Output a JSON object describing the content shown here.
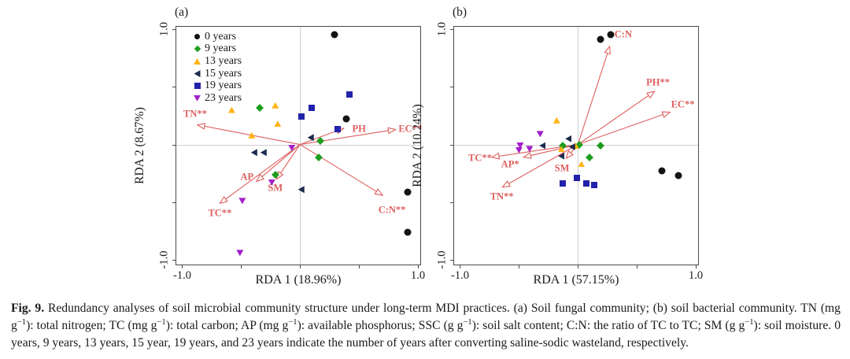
{
  "figure": {
    "caption": {
      "label": "Fig. 9.",
      "text": "Redundancy analyses of soil microbial community structure under long-term MDI practices. (a) Soil fungal community; (b) soil bacterial community. TN (mg g^{−1}): total nitrogen; TC (mg g^{−1}): total carbon; AP (mg g^{−1}): available phosphorus; SSC (g g^{−1}): soil salt content; C:N: the ratio of TC to TC; SM (g g^{−1}): soil moisture. 0 years, 9 years, 13 years, 15 year, 19 years, and 23 years indicate the number of years after converting saline-sodic wasteland, respectively."
    },
    "colors": {
      "arrow_red": "#dd5f5f",
      "grid_gray": "#cfcfcf",
      "frame": "#4a4a4a"
    }
  },
  "chart_data": [
    {
      "type": "scatter",
      "subtype": "rda-biplot",
      "panel": "(a)",
      "xlabel": "RDA 1 (18.96%)",
      "ylabel": "RDA 2 (8.67%)",
      "xlim": [
        -1.05,
        1.02
      ],
      "ylim": [
        -1.04,
        1.02
      ],
      "ticks": [
        -1.0,
        -0.5,
        0,
        0.5,
        1.0
      ],
      "labeled_ticks": [
        {
          "value": -1.0,
          "label": "-1.0"
        },
        {
          "value": 1.0,
          "label": "1.0"
        }
      ],
      "grid_crosshair": true,
      "legend_position": "top-left-inside",
      "show_legend": true,
      "groups": [
        {
          "label": "0 years",
          "marker": "circle",
          "color": "#131313",
          "points": [
            [
              0.29,
              0.95
            ],
            [
              0.39,
              0.22
            ],
            [
              0.91,
              -0.41
            ],
            [
              0.91,
              -0.76
            ]
          ]
        },
        {
          "label": "9 years",
          "marker": "diamond",
          "color": "#1e9c1e",
          "points": [
            [
              -0.34,
              0.32
            ],
            [
              0.17,
              0.03
            ],
            [
              0.16,
              -0.11
            ],
            [
              -0.21,
              -0.26
            ]
          ]
        },
        {
          "label": "13 years",
          "marker": "triangle-up",
          "color": "#ffb414",
          "points": [
            [
              -0.58,
              0.3
            ],
            [
              -0.21,
              0.34
            ],
            [
              -0.19,
              0.18
            ],
            [
              -0.41,
              0.08
            ]
          ]
        },
        {
          "label": "15 years",
          "marker": "triangle-left",
          "color": "#1b2b4d",
          "points": [
            [
              0.09,
              0.06
            ],
            [
              -0.39,
              -0.07
            ],
            [
              -0.31,
              -0.07
            ],
            [
              0.01,
              -0.39
            ]
          ]
        },
        {
          "label": "19 years",
          "marker": "square",
          "color": "#2222aa",
          "points": [
            [
              0.42,
              0.43
            ],
            [
              0.1,
              0.32
            ],
            [
              0.01,
              0.24
            ],
            [
              0.32,
              0.13
            ]
          ]
        },
        {
          "label": "23 years",
          "marker": "triangle-down",
          "color": "#a21fc9",
          "points": [
            [
              -0.07,
              -0.03
            ],
            [
              -0.24,
              -0.33
            ],
            [
              -0.49,
              -0.49
            ],
            [
              -0.51,
              -0.94
            ]
          ]
        }
      ],
      "arrows": [
        {
          "label": "TN**",
          "x": -0.87,
          "y": 0.17,
          "label_pos": [
            -0.89,
            0.26
          ]
        },
        {
          "label": "PH",
          "x": 0.37,
          "y": 0.14,
          "label_pos": [
            0.5,
            0.135
          ]
        },
        {
          "label": "EC**",
          "x": 0.81,
          "y": 0.13,
          "label_pos": [
            0.935,
            0.135
          ]
        },
        {
          "label": "C:N**",
          "x": 0.7,
          "y": -0.44,
          "label_pos": [
            0.78,
            -0.57
          ]
        },
        {
          "label": "AP",
          "x": -0.37,
          "y": -0.32,
          "label_pos": [
            -0.45,
            -0.285
          ]
        },
        {
          "label": "SM",
          "x": -0.2,
          "y": -0.3,
          "label_pos": [
            -0.21,
            -0.375
          ]
        },
        {
          "label": "TC**",
          "x": -0.68,
          "y": -0.51,
          "label_pos": [
            -0.68,
            -0.6
          ]
        }
      ]
    },
    {
      "type": "scatter",
      "subtype": "rda-biplot",
      "panel": "(b)",
      "xlabel": "RDA 1 (57.15%)",
      "ylabel": "RDA 2 (10.24%)",
      "xlim": [
        -1.05,
        1.02
      ],
      "ylim": [
        -1.04,
        1.02
      ],
      "ticks": [
        -1.0,
        -0.5,
        0,
        0.5,
        1.0
      ],
      "labeled_ticks": [
        {
          "value": -1.0,
          "label": "-1.0"
        },
        {
          "value": 1.0,
          "label": "1.0"
        }
      ],
      "grid_crosshair": true,
      "legend_position": "none",
      "show_legend": false,
      "groups": [
        {
          "label": "0 years",
          "marker": "circle",
          "color": "#131313",
          "points": [
            [
              0.19,
              0.91
            ],
            [
              0.28,
              0.95
            ],
            [
              0.71,
              -0.23
            ],
            [
              0.85,
              -0.27
            ]
          ]
        },
        {
          "label": "9 years",
          "marker": "diamond",
          "color": "#1e9c1e",
          "points": [
            [
              -0.13,
              -0.01
            ],
            [
              0.01,
              0.0
            ],
            [
              0.19,
              -0.01
            ],
            [
              0.1,
              -0.11
            ]
          ]
        },
        {
          "label": "13 years",
          "marker": "triangle-up",
          "color": "#ffb414",
          "points": [
            [
              -0.18,
              0.21
            ],
            [
              -0.14,
              -0.04
            ],
            [
              -0.02,
              -0.01
            ],
            [
              0.03,
              -0.17
            ]
          ]
        },
        {
          "label": "15 years",
          "marker": "triangle-left",
          "color": "#1b2b4d",
          "points": [
            [
              -0.08,
              0.05
            ],
            [
              -0.3,
              -0.01
            ],
            [
              -0.05,
              -0.02
            ],
            [
              -0.14,
              -0.1
            ]
          ]
        },
        {
          "label": "19 years",
          "marker": "square",
          "color": "#2222aa",
          "points": [
            [
              -0.01,
              -0.29
            ],
            [
              -0.13,
              -0.34
            ],
            [
              0.07,
              -0.34
            ],
            [
              0.14,
              -0.35
            ]
          ]
        },
        {
          "label": "23 years",
          "marker": "triangle-down",
          "color": "#a21fc9",
          "points": [
            [
              -0.32,
              0.09
            ],
            [
              -0.49,
              -0.01
            ],
            [
              -0.5,
              -0.05
            ],
            [
              -0.41,
              -0.04
            ]
          ]
        }
      ],
      "arrows": [
        {
          "label": "C:N",
          "x": 0.27,
          "y": 0.85,
          "label_pos": [
            0.385,
            0.95
          ]
        },
        {
          "label": "PH**",
          "x": 0.65,
          "y": 0.46,
          "label_pos": [
            0.68,
            0.535
          ]
        },
        {
          "label": "EC**",
          "x": 0.78,
          "y": 0.28,
          "label_pos": [
            0.89,
            0.345
          ]
        },
        {
          "label": "TC**",
          "x": -0.73,
          "y": -0.11,
          "label_pos": [
            -0.83,
            -0.12
          ]
        },
        {
          "label": "AP*",
          "x": -0.46,
          "y": -0.11,
          "label_pos": [
            -0.575,
            -0.175
          ]
        },
        {
          "label": "SM",
          "x": -0.1,
          "y": -0.12,
          "label_pos": [
            -0.135,
            -0.205
          ]
        },
        {
          "label": "TN**",
          "x": -0.64,
          "y": -0.37,
          "label_pos": [
            -0.645,
            -0.45
          ]
        }
      ]
    }
  ]
}
